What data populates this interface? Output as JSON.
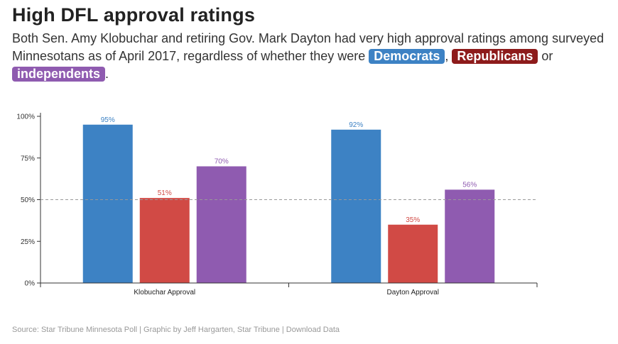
{
  "header": {
    "title": "High DFL approval ratings",
    "subtitle_part1": "Both Sen. Amy Klobuchar and retiring Gov. Mark Dayton had very high approval ratings among surveyed Minnesotans as of April 2017, regardless of whether they were",
    "comma": ",",
    "or_text": "or",
    "period": ".",
    "pill_democrats": "Democrats",
    "pill_republicans": "Republicans",
    "pill_independents": "independents"
  },
  "colors": {
    "democrats": "#3d82c4",
    "republicans": "#d14a45",
    "independents": "#8f5bb0",
    "pill_republicans": "#8d1b1b"
  },
  "chart_data": {
    "type": "bar",
    "categories": [
      "Klobuchar Approval",
      "Dayton Approval"
    ],
    "series": [
      {
        "name": "Democrats",
        "values": [
          95,
          92
        ]
      },
      {
        "name": "Republicans",
        "values": [
          51,
          35
        ]
      },
      {
        "name": "independents",
        "values": [
          70,
          56
        ]
      }
    ],
    "ylim": [
      0,
      100
    ],
    "yticks": [
      "0%",
      "25%",
      "50%",
      "75%",
      "100%"
    ],
    "ytick_values": [
      0,
      25,
      50,
      75,
      100
    ],
    "value_suffix": "%",
    "reference_line": 50,
    "grid": false
  },
  "footer": {
    "source": "Source: Star Tribune Minnesota Poll | Graphic by Jeff Hargarten, Star Tribune | Download Data"
  }
}
